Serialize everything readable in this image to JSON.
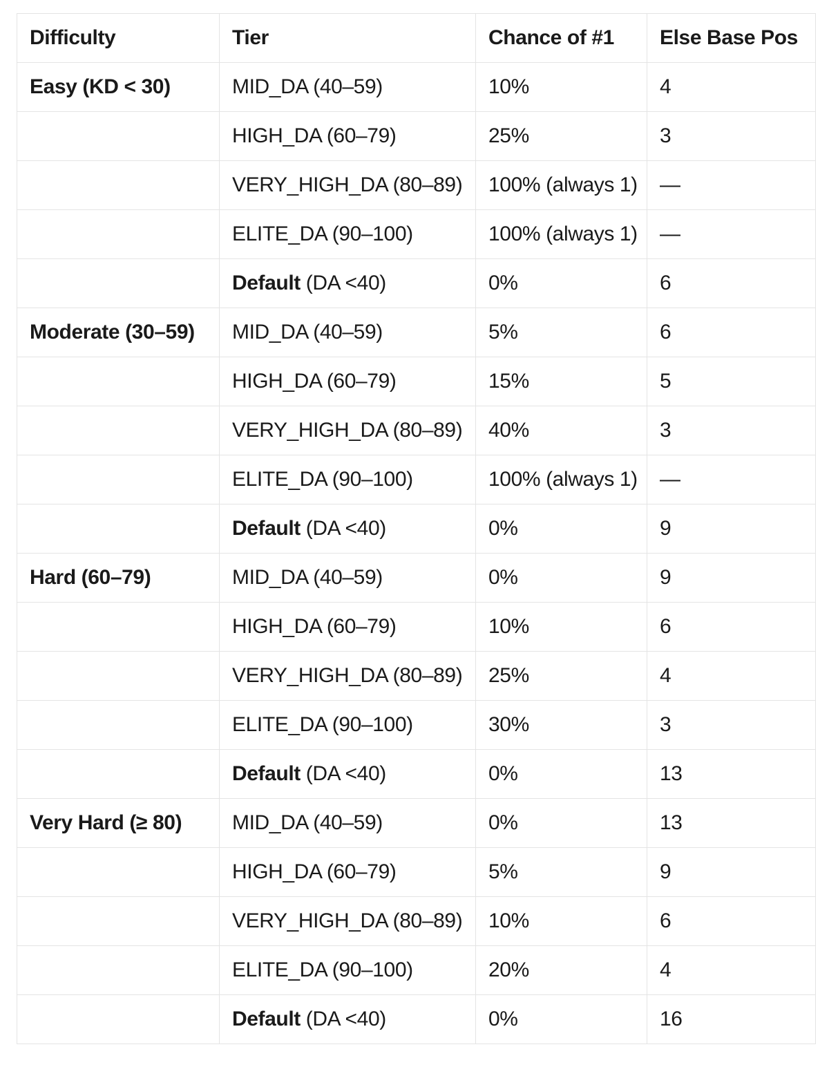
{
  "page": {
    "background_color": "#ffffff",
    "text_color": "#1a1a1a",
    "border_color": "#e4e4e4"
  },
  "table": {
    "columns": [
      {
        "label": "Difficulty"
      },
      {
        "label": "Tier"
      },
      {
        "label": "Chance of #1"
      },
      {
        "label": "Else Base Pos"
      }
    ],
    "rows": [
      {
        "difficulty": "Easy (KD < 30)",
        "tier_bold": "",
        "tier": "MID_DA (40–59)",
        "chance": "10%",
        "else_base_pos": "4"
      },
      {
        "difficulty": "",
        "tier_bold": "",
        "tier": "HIGH_DA (60–79)",
        "chance": "25%",
        "else_base_pos": "3"
      },
      {
        "difficulty": "",
        "tier_bold": "",
        "tier": "VERY_HIGH_DA (80–89)",
        "chance": "100% (always 1)",
        "else_base_pos": "—"
      },
      {
        "difficulty": "",
        "tier_bold": "",
        "tier": "ELITE_DA (90–100)",
        "chance": "100% (always 1)",
        "else_base_pos": "—"
      },
      {
        "difficulty": "",
        "tier_bold": "Default",
        "tier": " (DA <40)",
        "chance": "0%",
        "else_base_pos": "6"
      },
      {
        "difficulty": "Moderate (30–59)",
        "tier_bold": "",
        "tier": "MID_DA (40–59)",
        "chance": "5%",
        "else_base_pos": "6"
      },
      {
        "difficulty": "",
        "tier_bold": "",
        "tier": "HIGH_DA (60–79)",
        "chance": "15%",
        "else_base_pos": "5"
      },
      {
        "difficulty": "",
        "tier_bold": "",
        "tier": "VERY_HIGH_DA (80–89)",
        "chance": "40%",
        "else_base_pos": "3"
      },
      {
        "difficulty": "",
        "tier_bold": "",
        "tier": "ELITE_DA (90–100)",
        "chance": "100% (always 1)",
        "else_base_pos": "—"
      },
      {
        "difficulty": "",
        "tier_bold": "Default",
        "tier": " (DA <40)",
        "chance": "0%",
        "else_base_pos": "9"
      },
      {
        "difficulty": "Hard (60–79)",
        "tier_bold": "",
        "tier": "MID_DA (40–59)",
        "chance": "0%",
        "else_base_pos": "9"
      },
      {
        "difficulty": "",
        "tier_bold": "",
        "tier": "HIGH_DA (60–79)",
        "chance": "10%",
        "else_base_pos": "6"
      },
      {
        "difficulty": "",
        "tier_bold": "",
        "tier": "VERY_HIGH_DA (80–89)",
        "chance": "25%",
        "else_base_pos": "4"
      },
      {
        "difficulty": "",
        "tier_bold": "",
        "tier": "ELITE_DA (90–100)",
        "chance": "30%",
        "else_base_pos": "3"
      },
      {
        "difficulty": "",
        "tier_bold": "Default",
        "tier": " (DA <40)",
        "chance": "0%",
        "else_base_pos": "13"
      },
      {
        "difficulty": "Very Hard (≥ 80)",
        "tier_bold": "",
        "tier": "MID_DA (40–59)",
        "chance": "0%",
        "else_base_pos": "13"
      },
      {
        "difficulty": "",
        "tier_bold": "",
        "tier": "HIGH_DA (60–79)",
        "chance": "5%",
        "else_base_pos": "9"
      },
      {
        "difficulty": "",
        "tier_bold": "",
        "tier": "VERY_HIGH_DA (80–89)",
        "chance": "10%",
        "else_base_pos": "6"
      },
      {
        "difficulty": "",
        "tier_bold": "",
        "tier": "ELITE_DA (90–100)",
        "chance": "20%",
        "else_base_pos": "4"
      },
      {
        "difficulty": "",
        "tier_bold": "Default",
        "tier": " (DA <40)",
        "chance": "0%",
        "else_base_pos": "16"
      }
    ]
  }
}
